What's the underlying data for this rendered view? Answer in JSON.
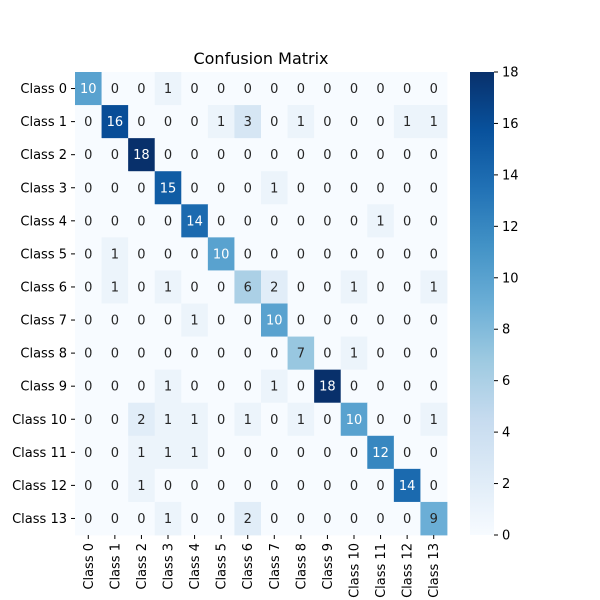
{
  "chart_data": {
    "type": "heatmap",
    "title": "Confusion Matrix",
    "xlabel": "",
    "ylabel": "",
    "rows": [
      "Class 0",
      "Class 1",
      "Class 2",
      "Class 3",
      "Class 4",
      "Class 5",
      "Class 6",
      "Class 7",
      "Class 8",
      "Class 9",
      "Class 10",
      "Class 11",
      "Class 12",
      "Class 13"
    ],
    "columns": [
      "Class 0",
      "Class 1",
      "Class 2",
      "Class 3",
      "Class 4",
      "Class 5",
      "Class 6",
      "Class 7",
      "Class 8",
      "Class 9",
      "Class 10",
      "Class 11",
      "Class 12",
      "Class 13"
    ],
    "values": [
      [
        10,
        0,
        0,
        1,
        0,
        0,
        0,
        0,
        0,
        0,
        0,
        0,
        0,
        0
      ],
      [
        0,
        16,
        0,
        0,
        0,
        1,
        3,
        0,
        1,
        0,
        0,
        0,
        1,
        1
      ],
      [
        0,
        0,
        18,
        0,
        0,
        0,
        0,
        0,
        0,
        0,
        0,
        0,
        0,
        0
      ],
      [
        0,
        0,
        0,
        15,
        0,
        0,
        0,
        1,
        0,
        0,
        0,
        0,
        0,
        0
      ],
      [
        0,
        0,
        0,
        0,
        14,
        0,
        0,
        0,
        0,
        0,
        0,
        1,
        0,
        0
      ],
      [
        0,
        1,
        0,
        0,
        0,
        10,
        0,
        0,
        0,
        0,
        0,
        0,
        0,
        0
      ],
      [
        0,
        1,
        0,
        1,
        0,
        0,
        6,
        2,
        0,
        0,
        1,
        0,
        0,
        1
      ],
      [
        0,
        0,
        0,
        0,
        1,
        0,
        0,
        10,
        0,
        0,
        0,
        0,
        0,
        0
      ],
      [
        0,
        0,
        0,
        0,
        0,
        0,
        0,
        0,
        7,
        0,
        1,
        0,
        0,
        0
      ],
      [
        0,
        0,
        0,
        1,
        0,
        0,
        0,
        1,
        0,
        18,
        0,
        0,
        0,
        0
      ],
      [
        0,
        0,
        2,
        1,
        1,
        0,
        1,
        0,
        1,
        0,
        10,
        0,
        0,
        1
      ],
      [
        0,
        0,
        1,
        1,
        1,
        0,
        0,
        0,
        0,
        0,
        0,
        12,
        0,
        0
      ],
      [
        0,
        0,
        1,
        0,
        0,
        0,
        0,
        0,
        0,
        0,
        0,
        0,
        14,
        0
      ],
      [
        0,
        0,
        0,
        1,
        0,
        0,
        2,
        0,
        0,
        0,
        0,
        0,
        0,
        9
      ]
    ],
    "colorbar": {
      "min": 0,
      "max": 18,
      "ticks": [
        0,
        2,
        4,
        6,
        8,
        10,
        12,
        14,
        16,
        18
      ]
    },
    "colormap": [
      "#f7fbff",
      "#deebf7",
      "#c6dbef",
      "#9ecae1",
      "#6baed6",
      "#4292c6",
      "#2171b5",
      "#08519c",
      "#08306b"
    ],
    "grid": false,
    "legend": "colorbar-right"
  }
}
